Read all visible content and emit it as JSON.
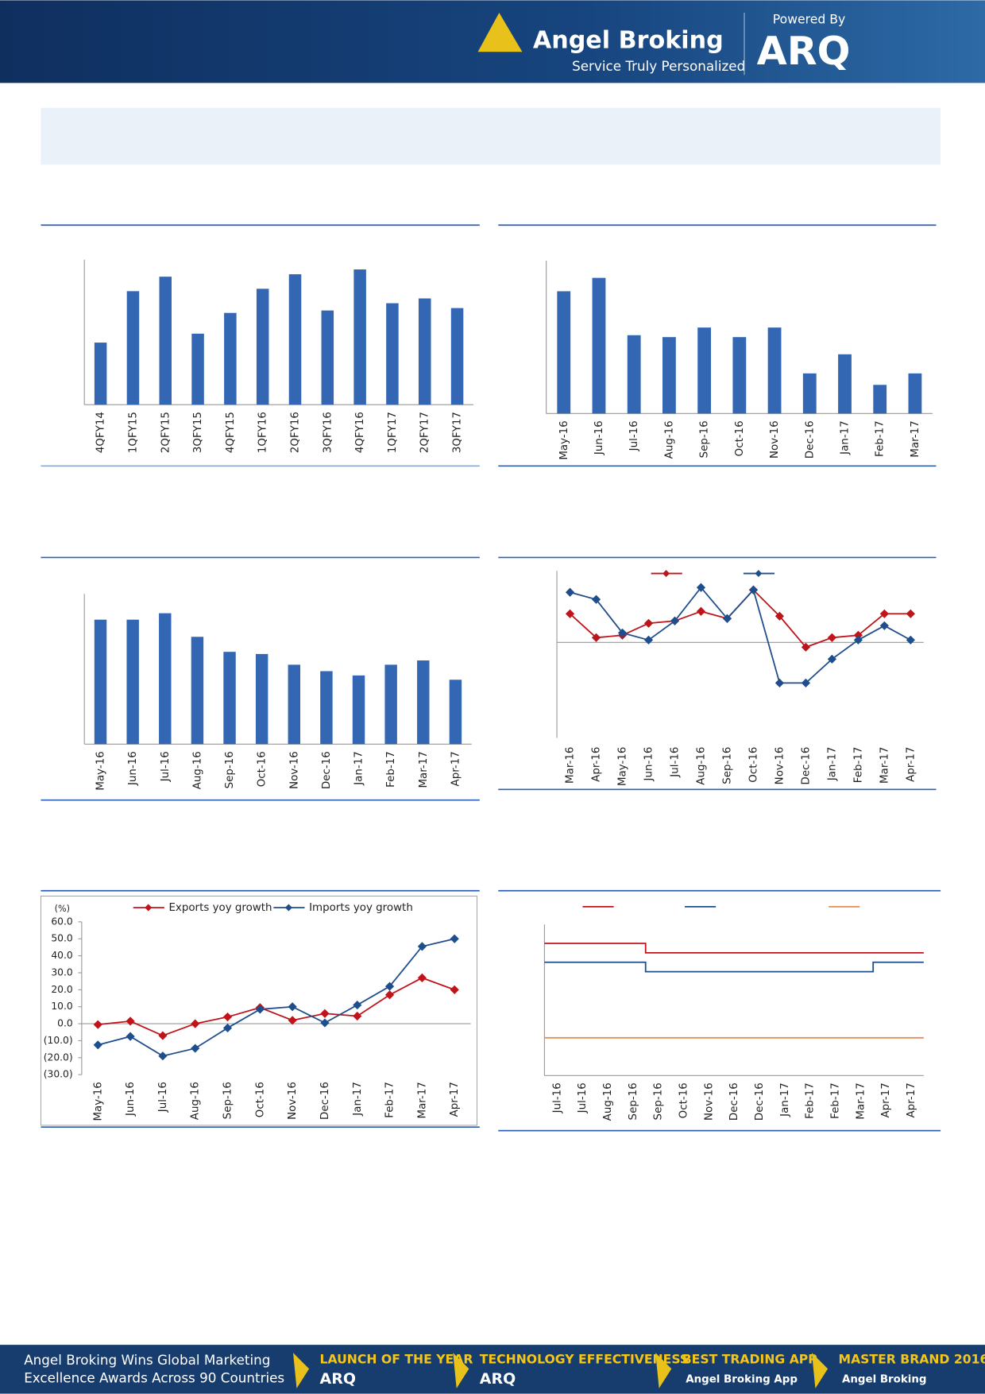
{
  "header": {
    "powered_by": "Powered By",
    "brand": "Angel Broking",
    "tagline": "Service Truly Personalized",
    "product": "ARQ"
  },
  "footer": {
    "line1": "Angel Broking Wins Global Marketing",
    "line2": "Excellence Awards Across 90 Countries",
    "awards": [
      {
        "title": "LAUNCH OF THE YEAR",
        "sub": "ARQ"
      },
      {
        "title": "TECHNOLOGY EFFECTIVENESS",
        "sub": "ARQ"
      },
      {
        "title": "BEST TRADING APP",
        "sub": "Angel Broking App"
      },
      {
        "title": "MASTER BRAND 2016",
        "sub": "Angel Broking"
      }
    ]
  },
  "chart_data": [
    {
      "type": "bar",
      "color": "#3366b3",
      "ylim": [
        0,
        6
      ],
      "categories": [
        "4QFY14",
        "1QFY15",
        "2QFY15",
        "3QFY15",
        "4QFY15",
        "1QFY16",
        "2QFY16",
        "3QFY16",
        "4QFY16",
        "1QFY17",
        "2QFY17",
        "3QFY17"
      ],
      "values": [
        2.57,
        4.7,
        5.3,
        2.94,
        3.8,
        4.8,
        5.4,
        3.9,
        5.6,
        4.2,
        4.4,
        4.0
      ]
    },
    {
      "type": "bar",
      "color": "#3366b3",
      "ylim": [
        0,
        8
      ],
      "categories": [
        "May-16",
        "Jun-16",
        "Jul-16",
        "Aug-16",
        "Sep-16",
        "Oct-16",
        "Nov-16",
        "Dec-16",
        "Jan-17",
        "Feb-17",
        "Mar-17"
      ],
      "values": [
        6.4,
        7.1,
        4.1,
        4.0,
        4.5,
        4.0,
        4.5,
        2.1,
        3.1,
        1.5,
        2.1
      ]
    },
    {
      "type": "bar",
      "color": "#3366b3",
      "ylim": [
        0,
        7
      ],
      "categories": [
        "May-16",
        "Jun-16",
        "Jul-16",
        "Aug-16",
        "Sep-16",
        "Oct-16",
        "Nov-16",
        "Dec-16",
        "Jan-17",
        "Feb-17",
        "Mar-17",
        "Apr-17"
      ],
      "values": [
        5.8,
        5.8,
        6.1,
        5.0,
        4.3,
        4.2,
        3.7,
        3.4,
        3.2,
        3.7,
        3.9,
        3.0
      ]
    },
    {
      "type": "line",
      "ylim": [
        -4,
        3
      ],
      "markers": "diamond",
      "legend": "top",
      "categories": [
        "Mar-16",
        "Apr-16",
        "May-16",
        "Jun-16",
        "Jul-16",
        "Aug-16",
        "Sep-16",
        "Oct-16",
        "Nov-16",
        "Dec-16",
        "Jan-17",
        "Feb-17",
        "Mar-17",
        "Apr-17"
      ],
      "series": [
        {
          "color": "#c0141b",
          "values": [
            1.2,
            0.2,
            0.3,
            0.8,
            0.9,
            1.3,
            1.0,
            2.2,
            1.1,
            -0.2,
            0.2,
            0.3,
            1.2,
            1.2
          ]
        },
        {
          "color": "#1f4e8c",
          "values": [
            2.1,
            1.8,
            0.4,
            0.1,
            0.9,
            2.3,
            1.0,
            2.2,
            -1.7,
            -1.7,
            -0.7,
            0.1,
            0.7,
            0.1
          ]
        }
      ]
    },
    {
      "type": "line",
      "ylim": [
        -30,
        60
      ],
      "markers": "diamond",
      "legend": "top",
      "y_label": "(%)",
      "yticks": [
        {
          "value": 60,
          "label": "60.0"
        },
        {
          "value": 50,
          "label": "50.0"
        },
        {
          "value": 40,
          "label": "40.0"
        },
        {
          "value": 30,
          "label": "30.0"
        },
        {
          "value": 20,
          "label": "20.0"
        },
        {
          "value": 10,
          "label": "10.0"
        },
        {
          "value": 0,
          "label": "0.0"
        },
        {
          "value": -10,
          "label": "(10.0)"
        },
        {
          "value": -20,
          "label": "(20.0)"
        },
        {
          "value": -30,
          "label": "(30.0)"
        }
      ],
      "categories": [
        "May-16",
        "Jun-16",
        "Jul-16",
        "Aug-16",
        "Sep-16",
        "Oct-16",
        "Nov-16",
        "Dec-16",
        "Jan-17",
        "Feb-17",
        "Mar-17",
        "Apr-17"
      ],
      "series": [
        {
          "name": "Exports yoy growth",
          "color": "#c0141b",
          "values": [
            -0.5,
            1.5,
            -7,
            0,
            4,
            9.5,
            2,
            6,
            4.5,
            17,
            27,
            20
          ]
        },
        {
          "name": "Imports yoy growth",
          "color": "#1f4e8c",
          "values": [
            -12.5,
            -7.5,
            -19,
            -14.5,
            -2.5,
            8.5,
            10,
            0.5,
            11,
            22,
            45.5,
            50
          ]
        }
      ]
    },
    {
      "type": "line",
      "ylim": [
        0,
        8
      ],
      "step": true,
      "legend": "top",
      "categories": [
        "Jul-16",
        "Jul-16",
        "Aug-16",
        "Sep-16",
        "Sep-16",
        "Oct-16",
        "Nov-16",
        "Dec-16",
        "Dec-16",
        "Jan-17",
        "Feb-17",
        "Feb-17",
        "Mar-17",
        "Apr-17",
        "Apr-17"
      ],
      "series": [
        {
          "color": "#c0141b",
          "values": [
            7,
            7,
            7,
            7,
            6.5,
            6.5,
            6.5,
            6.5,
            6.5,
            6.5,
            6.5,
            6.5,
            6.5,
            6.5,
            6.5
          ]
        },
        {
          "color": "#1f4e8c",
          "values": [
            6,
            6,
            6,
            6,
            5.5,
            5.5,
            5.5,
            5.5,
            5.5,
            5.5,
            5.5,
            5.5,
            5.5,
            6,
            6
          ]
        },
        {
          "color": "#e0915a",
          "values": [
            2,
            2,
            2,
            2,
            2,
            2,
            2,
            2,
            2,
            2,
            2,
            2,
            2,
            2,
            2
          ]
        }
      ]
    }
  ]
}
